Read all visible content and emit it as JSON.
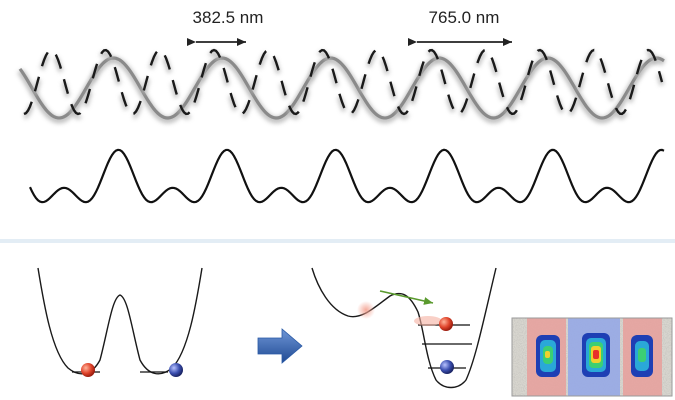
{
  "top_panel": {
    "label_short": "382.5 nm",
    "label_long": "765.0 nm",
    "short_wavelength_nm": 382.5,
    "long_wavelength_nm": 765.0
  },
  "colors": {
    "solid_wave": "#8a8a8a",
    "dashed_wave": "#1a1a1a",
    "combined_wave": "#111111",
    "divider": "#e3edf5",
    "red_atom": "#e0442b",
    "blue_atom": "#3b4fb0",
    "arrow_blue": "#2f62b3",
    "arrow_green": "#5a9a2e",
    "image_red": "#e79f9b",
    "image_blue": "#96a8e6"
  },
  "icons": {
    "process_arrow": "right-arrow-icon",
    "scale_arrows": "double-headed-arrow-icon"
  }
}
